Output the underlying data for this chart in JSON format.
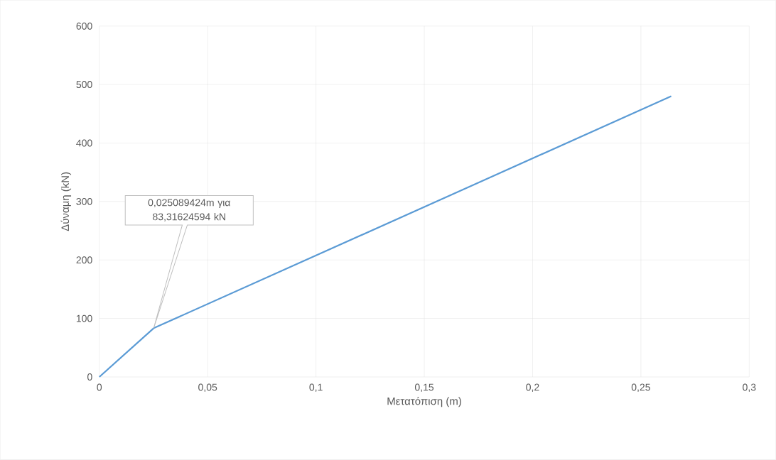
{
  "chart_data": {
    "type": "line",
    "xlabel": "Μετατόπιση (m)",
    "ylabel": "Δύναμη (kN)",
    "x": [
      0,
      0.025089424,
      0.264
    ],
    "series": [
      {
        "color": "#5b9bd5",
        "values": [
          0,
          83.31624594,
          480
        ]
      }
    ],
    "xlim": [
      0,
      0.3
    ],
    "ylim": [
      0,
      600
    ],
    "xticks": [
      0,
      {
        "value": 0.05,
        "label": "0,05"
      },
      {
        "value": 0.1,
        "label": "0,1"
      },
      {
        "value": 0.15,
        "label": "0,15"
      },
      {
        "value": 0.2,
        "label": "0,2"
      },
      {
        "value": 0.25,
        "label": "0,25"
      },
      {
        "value": 0.3,
        "label": "0,3"
      }
    ],
    "yticks": [
      0,
      100,
      200,
      300,
      400,
      500,
      600
    ],
    "grid": true,
    "marker": "none",
    "line_style": "solid",
    "annotations": [
      "0,025089424m για 83,31624594 kN"
    ]
  }
}
